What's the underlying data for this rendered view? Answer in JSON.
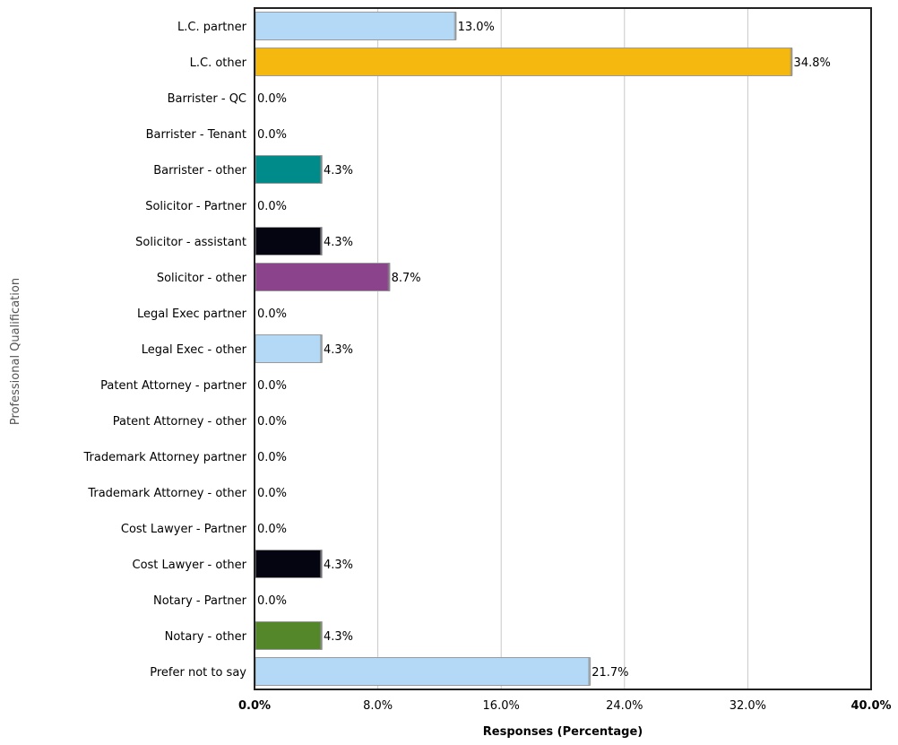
{
  "chart_data": {
    "type": "bar",
    "orientation": "horizontal",
    "xlabel": "Responses (Percentage)",
    "ylabel": "Professional Qualification",
    "xlim": [
      0,
      40
    ],
    "x_ticks": [
      "0.0%",
      "8.0%",
      "16.0%",
      "24.0%",
      "32.0%",
      "40.0%"
    ],
    "grid": true,
    "categories": [
      "L.C. partner",
      "L.C. other",
      "Barrister - QC",
      "Barrister - Tenant",
      "Barrister - other",
      "Solicitor - Partner",
      "Solicitor - assistant",
      "Solicitor - other",
      "Legal Exec partner",
      "Legal Exec - other",
      "Patent Attorney - partner",
      "Patent Attorney - other",
      "Trademark Attorney partner",
      "Trademark Attorney - other",
      "Cost Lawyer - Partner",
      "Cost Lawyer - other",
      "Notary - Partner",
      "Notary - other",
      "Prefer not to say"
    ],
    "values": [
      13.0,
      34.8,
      0.0,
      0.0,
      4.3,
      0.0,
      4.3,
      8.7,
      0.0,
      4.3,
      0.0,
      0.0,
      0.0,
      0.0,
      0.0,
      4.3,
      0.0,
      4.3,
      21.7
    ],
    "value_labels": [
      "13.0%",
      "34.8%",
      "0.0%",
      "0.0%",
      "4.3%",
      "0.0%",
      "4.3%",
      "8.7%",
      "0.0%",
      "4.3%",
      "0.0%",
      "0.0%",
      "0.0%",
      "0.0%",
      "0.0%",
      "4.3%",
      "0.0%",
      "4.3%",
      "21.7%"
    ],
    "colors": [
      "#b3d9f7",
      "#f4b80e",
      "#b3d9f7",
      "#b3d9f7",
      "#008b8b",
      "#b3d9f7",
      "#050512",
      "#8b448b",
      "#b3d9f7",
      "#b3d9f7",
      "#b3d9f7",
      "#b3d9f7",
      "#b3d9f7",
      "#b3d9f7",
      "#b3d9f7",
      "#050512",
      "#b3d9f7",
      "#54862a",
      "#b3d9f7"
    ]
  }
}
